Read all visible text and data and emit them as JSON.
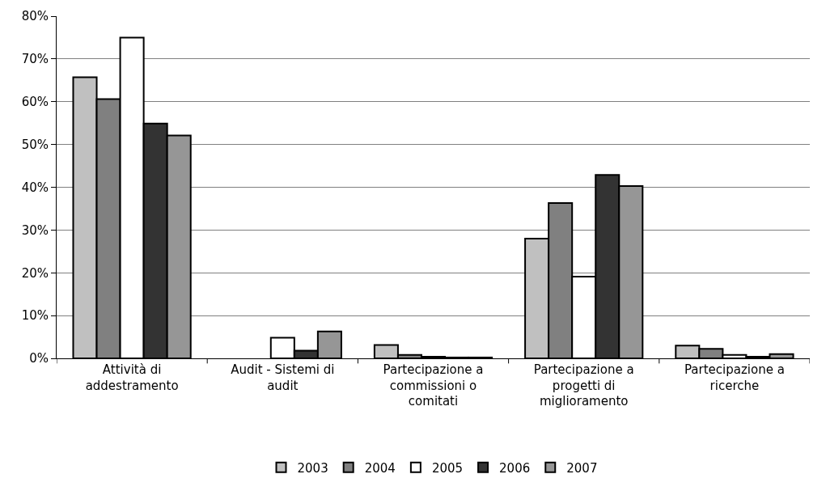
{
  "chart_data": {
    "type": "bar",
    "categories": [
      "Attività di\naddestramento",
      "Audit - Sistemi di\naudit",
      "Partecipazione a\ncommissioni o\ncomitati",
      "Partecipazione a\nprogetti di\nmiglioramento",
      "Partecipazione a\nricerche"
    ],
    "series": [
      {
        "name": "2003",
        "color": "#c0c0c0",
        "values": [
          65.7,
          null,
          3.1,
          28.0,
          3.0
        ]
      },
      {
        "name": "2004",
        "color": "#808080",
        "values": [
          60.6,
          null,
          0.8,
          36.3,
          2.2
        ]
      },
      {
        "name": "2005",
        "color": "#ffffff",
        "values": [
          75.0,
          4.8,
          0.4,
          19.1,
          0.8
        ]
      },
      {
        "name": "2006",
        "color": "#333333",
        "values": [
          54.9,
          1.8,
          0.2,
          42.9,
          0.4
        ]
      },
      {
        "name": "2007",
        "color": "#969696",
        "values": [
          52.1,
          6.3,
          0.2,
          40.3,
          1.0
        ]
      }
    ],
    "ylim": [
      0,
      80
    ],
    "yticks": [
      {
        "value": 0,
        "label": "0%"
      },
      {
        "value": 10,
        "label": "10%"
      },
      {
        "value": 20,
        "label": "20%"
      },
      {
        "value": 30,
        "label": "30%"
      },
      {
        "value": 40,
        "label": "40%"
      },
      {
        "value": 50,
        "label": "50%"
      },
      {
        "value": 60,
        "label": "60%"
      },
      {
        "value": 70,
        "label": "70%"
      },
      {
        "value": 80,
        "label": "80%"
      }
    ],
    "grid": "y",
    "legend": "bottom"
  }
}
